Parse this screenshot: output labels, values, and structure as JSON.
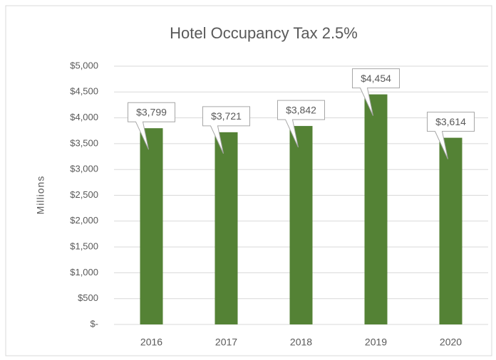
{
  "chart_data": {
    "type": "bar",
    "title": "Hotel Occupancy Tax 2.5%",
    "y_label": "Millions",
    "categories": [
      "2016",
      "2017",
      "2018",
      "2019",
      "2020"
    ],
    "values": [
      3799,
      3721,
      3842,
      4454,
      3614
    ],
    "value_labels": [
      "$3,799",
      "$3,721",
      "$3,842",
      "$4,454",
      "$3,614"
    ],
    "color": "#548235",
    "ylim": [
      0,
      5000
    ],
    "yticks": [
      {
        "value": 0,
        "label": "$-"
      },
      {
        "value": 500,
        "label": "$500"
      },
      {
        "value": 1000,
        "label": "$1,000"
      },
      {
        "value": 1500,
        "label": "$1,500"
      },
      {
        "value": 2000,
        "label": "$2,000"
      },
      {
        "value": 2500,
        "label": "$2,500"
      },
      {
        "value": 3000,
        "label": "$3,000"
      },
      {
        "value": 3500,
        "label": "$3,500"
      },
      {
        "value": 4000,
        "label": "$4,000"
      },
      {
        "value": 4500,
        "label": "$4,500"
      },
      {
        "value": 5000,
        "label": "$5,000"
      }
    ],
    "grid": true
  }
}
